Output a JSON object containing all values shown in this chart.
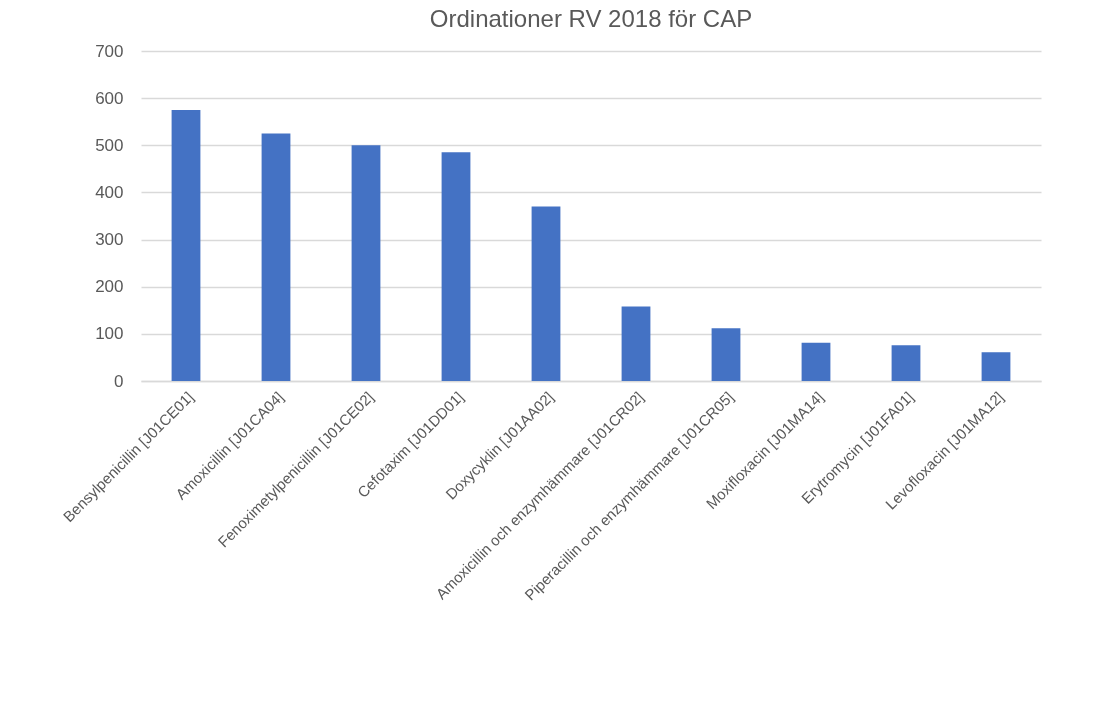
{
  "chart_data": {
    "type": "bar",
    "title": "Ordinationer RV 2018 för CAP",
    "categories": [
      "Bensylpenicillin [J01CE01]",
      "Amoxicillin [J01CA04]",
      "Fenoximetylpenicillin [J01CE02]",
      "Cefotaxim [J01DD01]",
      "Doxycyklin [J01AA02]",
      "Amoxicillin och enzymhämmare [J01CR02]",
      "Piperacillin och enzymhämmare [J01CR05]",
      "Moxifloxacin [J01MA14]",
      "Erytromycin [J01FA01]",
      "Levofloxacin [J01MA12]"
    ],
    "values": [
      575,
      525,
      500,
      485,
      370,
      158,
      112,
      81,
      76,
      61
    ],
    "color": "#4472c4",
    "ylim": [
      0,
      700
    ],
    "yticks": [
      0,
      100,
      200,
      300,
      400,
      500,
      600,
      700
    ],
    "grid": "y"
  }
}
